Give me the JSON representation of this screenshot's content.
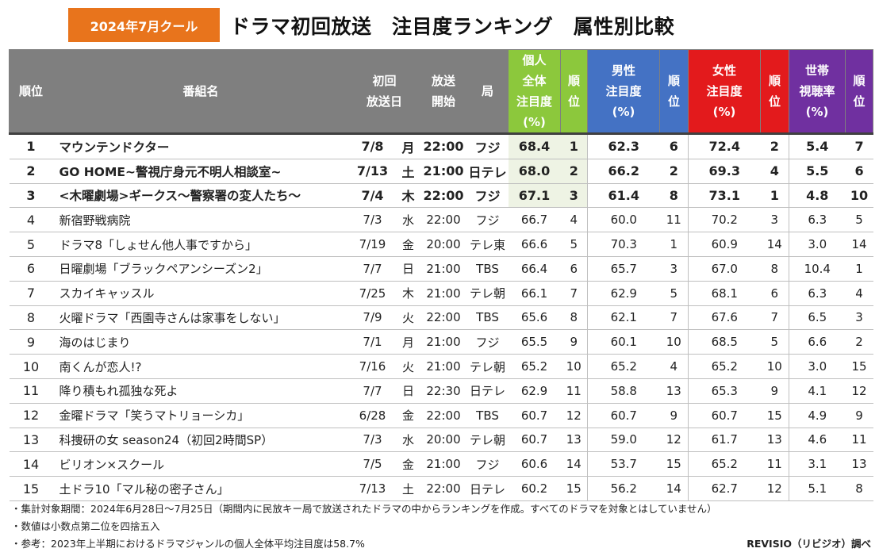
{
  "badge": "2024年7月クール",
  "title": "ドラマ初回放送　注目度ランキング　属性別比較",
  "headers": {
    "rank": "順位",
    "name": "番組名",
    "date_l1": "初回",
    "date_l2": "放送日",
    "start_l1": "放送",
    "start_l2": "開始",
    "station": "局",
    "ind_l1": "個人",
    "ind_l2": "全体",
    "ind_l3": "注目度",
    "ind_l4": "(%)",
    "rank_l1": "順",
    "rank_l2": "位",
    "male_l1": "男性",
    "male_l2": "注目度",
    "male_l3": "(%)",
    "female_l1": "女性",
    "female_l2": "注目度",
    "female_l3": "(%)",
    "hh_l1": "世帯",
    "hh_l2": "視聴率",
    "hh_l3": "(%)"
  },
  "colors": {
    "individual": "#8cc83c",
    "male": "#4472c4",
    "female": "#e31a1c",
    "household": "#7030a0",
    "badge": "#e8741c"
  },
  "rows": [
    {
      "rank": "1",
      "name": "マウンテンドクター",
      "date": "7/8",
      "dow": "月",
      "start": "22:00",
      "station": "フジ",
      "ind": "68.4",
      "ind_rank": "1",
      "male": "62.3",
      "male_rank": "6",
      "female": "72.4",
      "female_rank": "2",
      "hh": "5.4",
      "hh_rank": "7",
      "top": true,
      "hl": [
        "ind",
        "female"
      ]
    },
    {
      "rank": "2",
      "name": "GO HOME~警視庁身元不明人相談室~",
      "date": "7/13",
      "dow": "土",
      "start": "21:00",
      "station": "日テレ",
      "ind": "68.0",
      "ind_rank": "2",
      "male": "66.2",
      "male_rank": "2",
      "female": "69.3",
      "female_rank": "4",
      "hh": "5.5",
      "hh_rank": "6",
      "top": true,
      "hl": [
        "ind",
        "male"
      ]
    },
    {
      "rank": "3",
      "name": "<木曜劇場>ギークス～警察署の変人たち～",
      "date": "7/4",
      "dow": "木",
      "start": "22:00",
      "station": "フジ",
      "ind": "67.1",
      "ind_rank": "3",
      "male": "61.4",
      "male_rank": "8",
      "female": "73.1",
      "female_rank": "1",
      "hh": "4.8",
      "hh_rank": "10",
      "top": true,
      "hl": [
        "ind",
        "female"
      ]
    },
    {
      "rank": "4",
      "name": "新宿野戦病院",
      "date": "7/3",
      "dow": "水",
      "start": "22:00",
      "station": "フジ",
      "ind": "66.7",
      "ind_rank": "4",
      "male": "60.0",
      "male_rank": "11",
      "female": "70.2",
      "female_rank": "3",
      "hh": "6.3",
      "hh_rank": "5",
      "top": false,
      "hl": [
        "female"
      ]
    },
    {
      "rank": "5",
      "name": "ドラマ8「しょせん他人事ですから」",
      "date": "7/19",
      "dow": "金",
      "start": "20:00",
      "station": "テレ東",
      "ind": "66.6",
      "ind_rank": "5",
      "male": "70.3",
      "male_rank": "1",
      "female": "60.9",
      "female_rank": "14",
      "hh": "3.0",
      "hh_rank": "14",
      "top": false,
      "hl": [
        "male"
      ]
    },
    {
      "rank": "6",
      "name": "日曜劇場「ブラックペアンシーズン2」",
      "date": "7/7",
      "dow": "日",
      "start": "21:00",
      "station": "TBS",
      "ind": "66.4",
      "ind_rank": "6",
      "male": "65.7",
      "male_rank": "3",
      "female": "67.0",
      "female_rank": "8",
      "hh": "10.4",
      "hh_rank": "1",
      "top": false,
      "hl": [
        "male",
        "hh"
      ]
    },
    {
      "rank": "7",
      "name": "スカイキャッスル",
      "date": "7/25",
      "dow": "木",
      "start": "21:00",
      "station": "テレ朝",
      "ind": "66.1",
      "ind_rank": "7",
      "male": "62.9",
      "male_rank": "5",
      "female": "68.1",
      "female_rank": "6",
      "hh": "6.3",
      "hh_rank": "4",
      "top": false,
      "hl": []
    },
    {
      "rank": "8",
      "name": "火曜ドラマ「西園寺さんは家事をしない」",
      "date": "7/9",
      "dow": "火",
      "start": "22:00",
      "station": "TBS",
      "ind": "65.6",
      "ind_rank": "8",
      "male": "62.1",
      "male_rank": "7",
      "female": "67.6",
      "female_rank": "7",
      "hh": "6.5",
      "hh_rank": "3",
      "top": false,
      "hl": [
        "hh"
      ]
    },
    {
      "rank": "9",
      "name": "海のはじまり",
      "date": "7/1",
      "dow": "月",
      "start": "21:00",
      "station": "フジ",
      "ind": "65.5",
      "ind_rank": "9",
      "male": "60.1",
      "male_rank": "10",
      "female": "68.5",
      "female_rank": "5",
      "hh": "6.6",
      "hh_rank": "2",
      "top": false,
      "hl": [
        "hh"
      ]
    },
    {
      "rank": "10",
      "name": "南くんが恋人!?",
      "date": "7/16",
      "dow": "火",
      "start": "21:00",
      "station": "テレ朝",
      "ind": "65.2",
      "ind_rank": "10",
      "male": "65.2",
      "male_rank": "4",
      "female": "65.2",
      "female_rank": "10",
      "hh": "3.0",
      "hh_rank": "15",
      "top": false,
      "hl": []
    },
    {
      "rank": "11",
      "name": "降り積もれ孤独な死よ",
      "date": "7/7",
      "dow": "日",
      "start": "22:30",
      "station": "日テレ",
      "ind": "62.9",
      "ind_rank": "11",
      "male": "58.8",
      "male_rank": "13",
      "female": "65.3",
      "female_rank": "9",
      "hh": "4.1",
      "hh_rank": "12",
      "top": false,
      "hl": []
    },
    {
      "rank": "12",
      "name": "金曜ドラマ「笑うマトリョーシカ」",
      "date": "6/28",
      "dow": "金",
      "start": "22:00",
      "station": "TBS",
      "ind": "60.7",
      "ind_rank": "12",
      "male": "60.7",
      "male_rank": "9",
      "female": "60.7",
      "female_rank": "15",
      "hh": "4.9",
      "hh_rank": "9",
      "top": false,
      "hl": []
    },
    {
      "rank": "13",
      "name": "科捜研の女 season24（初回2時間SP）",
      "date": "7/3",
      "dow": "水",
      "start": "20:00",
      "station": "テレ朝",
      "ind": "60.7",
      "ind_rank": "13",
      "male": "59.0",
      "male_rank": "12",
      "female": "61.7",
      "female_rank": "13",
      "hh": "4.6",
      "hh_rank": "11",
      "top": false,
      "hl": []
    },
    {
      "rank": "14",
      "name": "ビリオン×スクール",
      "date": "7/5",
      "dow": "金",
      "start": "21:00",
      "station": "フジ",
      "ind": "60.6",
      "ind_rank": "14",
      "male": "53.7",
      "male_rank": "15",
      "female": "65.2",
      "female_rank": "11",
      "hh": "3.1",
      "hh_rank": "13",
      "top": false,
      "hl": []
    },
    {
      "rank": "15",
      "name": "土ドラ10「マル秘の密子さん」",
      "date": "7/13",
      "dow": "土",
      "start": "22:00",
      "station": "日テレ",
      "ind": "60.2",
      "ind_rank": "15",
      "male": "56.2",
      "male_rank": "14",
      "female": "62.7",
      "female_rank": "12",
      "hh": "5.1",
      "hh_rank": "8",
      "top": false,
      "hl": []
    }
  ],
  "notes": [
    "・集計対象期間：2024年6月28日～7月25日（期間内に民放キー局で放送されたドラマの中からランキングを作成。すべてのドラマを対象とはしていません）",
    "・数値は小数点第二位を四捨五入",
    "・参考：2023年上半期におけるドラマジャンルの個人全体平均注目度は58.7%"
  ],
  "credit": "REVISIO（リビジオ）調べ"
}
